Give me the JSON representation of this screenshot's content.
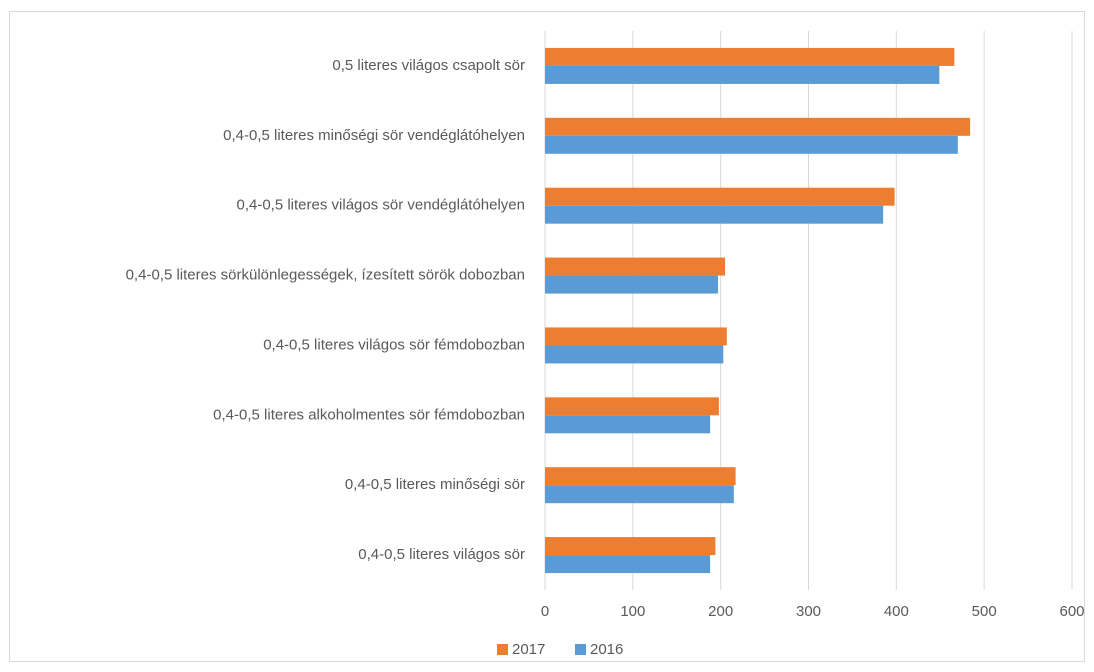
{
  "chart_data": {
    "type": "bar",
    "orientation": "horizontal",
    "categories": [
      "0,5 literes világos csapolt sör",
      "0,4-0,5 literes minőségi sör vendéglátóhelyen",
      "0,4-0,5 literes világos sör vendéglátóhelyen",
      "0,4-0,5 literes sörkülönlegességek, ízesített sörök dobozban",
      "0,4-0,5 literes világos sör fémdobozban",
      "0,4-0,5 literes alkoholmentes sör fémdobozban",
      "0,4-0,5 literes minőségi sör",
      "0,4-0,5 literes világos sör"
    ],
    "series": [
      {
        "name": "2017",
        "color": "#ed7d31",
        "values": [
          466,
          484,
          398,
          205,
          207,
          198,
          217,
          194
        ]
      },
      {
        "name": "2016",
        "color": "#5b9bd5",
        "values": [
          449,
          470,
          385,
          197,
          203,
          188,
          215,
          188
        ]
      }
    ],
    "xlim": [
      0,
      600
    ],
    "xticks": [
      0,
      100,
      200,
      300,
      400,
      500,
      600
    ],
    "grid": true,
    "legend": "bottom"
  }
}
